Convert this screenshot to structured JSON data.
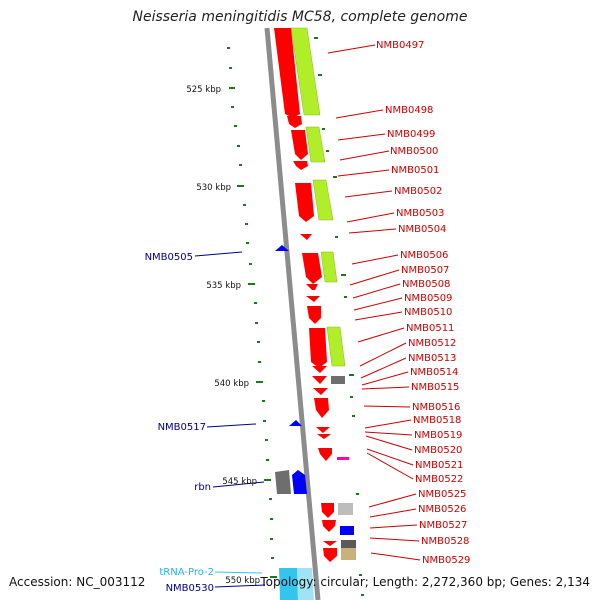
{
  "title": "Neisseria meningitidis MC58, complete genome",
  "footer": {
    "accession": "Accession: NC_003112",
    "summary": "Topology: circular; Length: 2,272,360 bp; Genes: 2,134"
  },
  "colors": {
    "forward_cds": "#ff0000",
    "reverse_cds": "#0000ff",
    "orf": "#b0ee2a",
    "trna": "#33c5ee",
    "misc": "#bdbdbd",
    "pseudo": "#ff00aa",
    "backbone": "#8c8c8c",
    "tick": "#1a7a1a",
    "label_right": "#cc0000",
    "label_left": "#00008b"
  },
  "scale_labels": [
    "525 kbp",
    "530 kbp",
    "535 kbp",
    "540 kbp",
    "545 kbp",
    "550 kbp"
  ],
  "right_genes": [
    "NMB0497",
    "NMB0498",
    "NMB0499",
    "NMB0500",
    "NMB0501",
    "NMB0502",
    "NMB0503",
    "NMB0504",
    "NMB0506",
    "NMB0507",
    "NMB0508",
    "NMB0509",
    "NMB0510",
    "NMB0511",
    "NMB0512",
    "NMB0513",
    "NMB0514",
    "NMB0515",
    "NMB0516",
    "NMB0518",
    "NMB0519",
    "NMB0520",
    "NMB0521",
    "NMB0522",
    "NMB0525",
    "NMB0526",
    "NMB0527",
    "NMB0528",
    "NMB0529"
  ],
  "left_genes": [
    "NMB0505",
    "NMB0517",
    "rbn",
    "NMB0530"
  ],
  "trna_gene": "tRNA-Pro-2"
}
